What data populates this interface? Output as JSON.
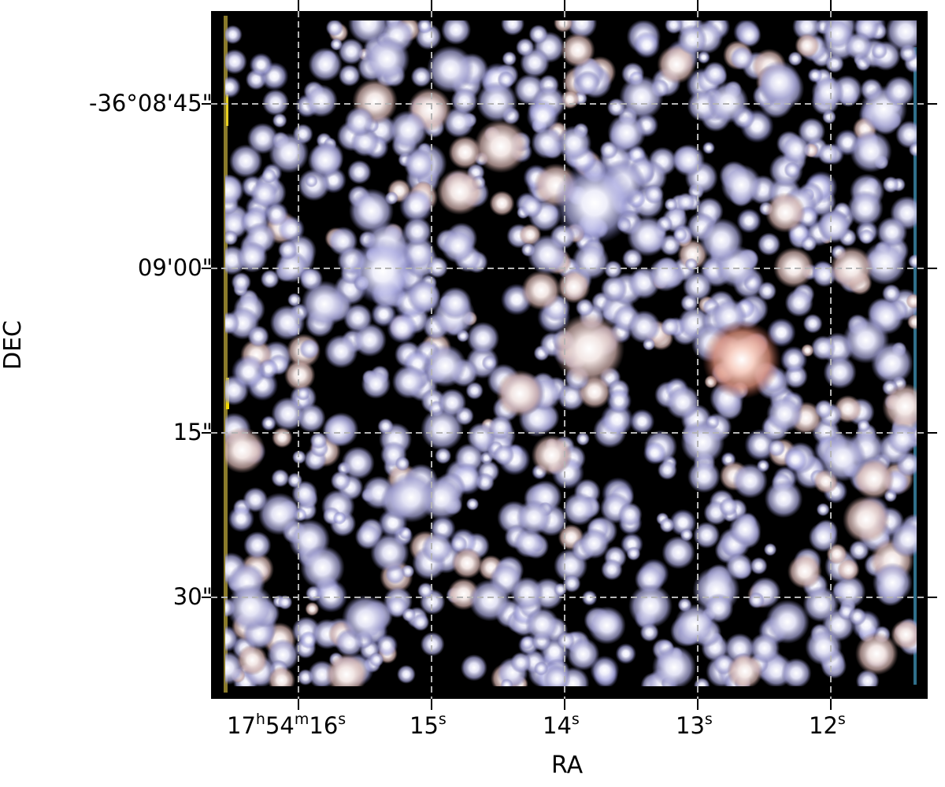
{
  "image": {
    "kind": "rgb composite star field",
    "colors": {
      "background": "#000000",
      "star_core": "#ffffff",
      "star_halo": "#a9a9d6",
      "red_star": "#f5b7a0",
      "grid": "#b4b4b4",
      "frame": "#000000"
    }
  },
  "axes": {
    "xlabel": "RA",
    "ylabel": "DEC",
    "grid": true,
    "grid_style": "dashed",
    "x_ticks": [
      {
        "h": "17",
        "m": "54",
        "s": "16",
        "seconds": 16,
        "full": true
      },
      {
        "s": "15",
        "seconds": 15
      },
      {
        "s": "14",
        "seconds": 14
      },
      {
        "s": "13",
        "seconds": 13
      },
      {
        "s": "12",
        "seconds": 12
      }
    ],
    "y_ticks": [
      {
        "label": "-36°08'45\"",
        "arcsec": 45
      },
      {
        "label": "09'00\"",
        "arcsec": 60
      },
      {
        "label": "15\"",
        "arcsec": 75
      },
      {
        "label": "30\"",
        "arcsec": 90
      }
    ]
  }
}
